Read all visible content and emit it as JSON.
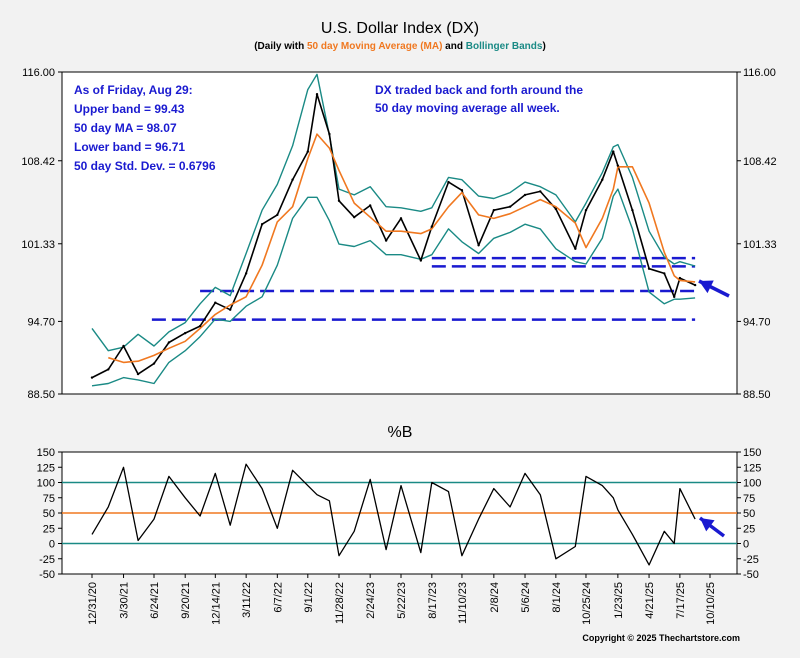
{
  "colors": {
    "price": "#000000",
    "ma": "#f07820",
    "bands": "#1a8a85",
    "annotation": "#1a1ad0",
    "support_lines": "#1a1ad0",
    "background": "#f2f2f2",
    "pane": "#ffffff"
  },
  "chart_data": [
    {
      "type": "line",
      "title": "U.S. Dollar Index (DX)",
      "subtitle": {
        "prefix": "(Daily with ",
        "ma": "50 day Moving Average (MA)",
        "mid": " and ",
        "bands": "Bollinger Bands",
        "suffix": ")"
      },
      "ylim": [
        88.5,
        116.0
      ],
      "y_ticks": [
        "116.00",
        "108.42",
        "101.33",
        "94.70",
        "88.50"
      ],
      "y_tick_values": [
        116.0,
        108.42,
        101.33,
        94.7,
        88.5
      ],
      "x_ticks": [
        "12/31/20",
        "3/30/21",
        "6/24/21",
        "9/20/21",
        "12/14/21",
        "3/11/22",
        "6/7/22",
        "9/1/22",
        "11/28/22",
        "2/24/23",
        "5/22/23",
        "8/17/23",
        "11/10/23",
        "2/8/24",
        "5/6/24",
        "8/1/24",
        "10/25/24",
        "1/23/25",
        "4/21/25",
        "7/17/25",
        "10/10/25"
      ],
      "series": [
        {
          "role": "price",
          "x": [
            "12/31/20",
            "2/15/21",
            "3/30/21",
            "5/10/21",
            "6/24/21",
            "8/5/21",
            "9/20/21",
            "11/1/21",
            "12/14/21",
            "1/25/22",
            "3/11/22",
            "4/25/22",
            "6/7/22",
            "7/20/22",
            "9/1/22",
            "9/27/22",
            "11/1/22",
            "11/28/22",
            "1/10/23",
            "2/24/23",
            "4/10/23",
            "5/22/23",
            "7/17/23",
            "8/17/23",
            "10/3/23",
            "11/10/23",
            "12/27/23",
            "2/8/24",
            "3/25/24",
            "5/6/24",
            "6/18/24",
            "8/1/24",
            "9/25/24",
            "10/25/24",
            "12/10/24",
            "1/10/25",
            "1/23/25",
            "3/5/25",
            "4/21/25",
            "6/3/25",
            "7/1/25",
            "7/17/25",
            "8/29/25"
          ],
          "values": [
            89.9,
            90.6,
            92.6,
            90.2,
            91.1,
            92.9,
            93.7,
            94.3,
            96.3,
            95.7,
            98.8,
            103.0,
            103.8,
            106.8,
            109.2,
            114.1,
            110.7,
            105.0,
            103.6,
            104.6,
            101.6,
            103.5,
            99.9,
            102.8,
            106.6,
            105.9,
            101.2,
            104.2,
            104.5,
            105.5,
            105.8,
            104.3,
            100.9,
            104.2,
            106.8,
            109.2,
            108.0,
            104.2,
            99.2,
            98.8,
            96.8,
            98.4,
            97.8
          ]
        },
        {
          "role": "ma",
          "x": [
            "2/15/21",
            "3/30/21",
            "5/10/21",
            "6/24/21",
            "8/5/21",
            "9/20/21",
            "11/1/21",
            "12/14/21",
            "1/25/22",
            "3/11/22",
            "4/25/22",
            "6/7/22",
            "7/20/22",
            "9/1/22",
            "9/27/22",
            "11/1/22",
            "11/28/22",
            "1/10/23",
            "2/24/23",
            "4/10/23",
            "5/22/23",
            "7/17/23",
            "8/17/23",
            "10/3/23",
            "11/10/23",
            "12/27/23",
            "2/8/24",
            "3/25/24",
            "5/6/24",
            "6/18/24",
            "8/1/24",
            "9/25/24",
            "10/25/24",
            "12/10/24",
            "1/10/25",
            "1/23/25",
            "3/5/25",
            "4/21/25",
            "6/3/25",
            "7/1/25",
            "7/17/25",
            "8/29/25"
          ],
          "values": [
            91.6,
            91.2,
            91.3,
            91.8,
            92.4,
            93.0,
            94.1,
            95.3,
            96.1,
            96.8,
            99.5,
            103.2,
            104.5,
            108.6,
            110.7,
            109.5,
            107.6,
            104.8,
            103.6,
            102.4,
            102.4,
            102.2,
            102.6,
            104.5,
            105.7,
            103.8,
            103.5,
            103.9,
            104.5,
            105.1,
            104.5,
            103.1,
            101.0,
            103.5,
            106.0,
            107.9,
            107.9,
            104.8,
            100.6,
            98.6,
            98.2,
            98.07
          ]
        },
        {
          "role": "upper_band",
          "x": [
            "12/31/20",
            "2/15/21",
            "3/30/21",
            "5/10/21",
            "6/24/21",
            "8/5/21",
            "9/20/21",
            "11/1/21",
            "12/14/21",
            "1/25/22",
            "3/11/22",
            "4/25/22",
            "6/7/22",
            "7/20/22",
            "9/1/22",
            "9/27/22",
            "11/1/22",
            "11/28/22",
            "1/10/23",
            "2/24/23",
            "4/10/23",
            "5/22/23",
            "7/17/23",
            "8/17/23",
            "10/3/23",
            "11/10/23",
            "12/27/23",
            "2/8/24",
            "3/25/24",
            "5/6/24",
            "6/18/24",
            "8/1/24",
            "9/25/24",
            "10/25/24",
            "12/10/24",
            "1/10/25",
            "1/23/25",
            "3/5/25",
            "4/21/25",
            "6/3/25",
            "7/1/25",
            "7/17/25",
            "8/29/25"
          ],
          "values": [
            94.1,
            92.2,
            92.5,
            93.6,
            92.6,
            93.8,
            94.6,
            96.2,
            97.6,
            96.9,
            100.5,
            104.2,
            106.4,
            109.7,
            114.5,
            115.8,
            110.6,
            106.0,
            105.5,
            106.2,
            104.5,
            104.4,
            104.1,
            104.4,
            107.0,
            106.8,
            105.4,
            105.2,
            105.7,
            106.6,
            106.2,
            105.5,
            103.2,
            104.8,
            107.4,
            109.6,
            109.8,
            107.0,
            102.4,
            100.2,
            99.6,
            99.8,
            99.43
          ]
        },
        {
          "role": "lower_band",
          "x": [
            "12/31/20",
            "2/15/21",
            "3/30/21",
            "5/10/21",
            "6/24/21",
            "8/5/21",
            "9/20/21",
            "11/1/21",
            "12/14/21",
            "1/25/22",
            "3/11/22",
            "4/25/22",
            "6/7/22",
            "7/20/22",
            "9/1/22",
            "9/27/22",
            "11/1/22",
            "11/28/22",
            "1/10/23",
            "2/24/23",
            "4/10/23",
            "5/22/23",
            "7/17/23",
            "8/17/23",
            "10/3/23",
            "11/10/23",
            "12/27/23",
            "2/8/24",
            "3/25/24",
            "5/6/24",
            "6/18/24",
            "8/1/24",
            "9/25/24",
            "10/25/24",
            "12/10/24",
            "1/10/25",
            "1/23/25",
            "3/5/25",
            "4/21/25",
            "6/3/25",
            "7/1/25",
            "7/17/25",
            "8/29/25"
          ],
          "values": [
            89.2,
            89.4,
            89.9,
            89.7,
            89.4,
            91.2,
            92.2,
            93.4,
            94.9,
            94.7,
            96.0,
            96.8,
            99.5,
            103.5,
            105.3,
            105.3,
            103.3,
            101.3,
            101.1,
            101.6,
            100.4,
            100.4,
            100.0,
            100.4,
            102.6,
            101.5,
            100.5,
            101.8,
            102.3,
            103.0,
            102.6,
            100.9,
            99.8,
            99.6,
            101.8,
            105.4,
            106.0,
            102.6,
            97.2,
            96.2,
            96.6,
            96.6,
            96.71
          ]
        }
      ],
      "support_lines": [
        {
          "from": "6/18/21",
          "to": "8/29/25",
          "value": 94.85
        },
        {
          "from": "11/1/21",
          "to": "8/29/25",
          "value": 97.3
        },
        {
          "from": "8/17/23",
          "to": "8/29/25",
          "value": 99.4
        },
        {
          "from": "8/17/23",
          "to": "8/29/25",
          "value": 100.1
        }
      ],
      "annotations": {
        "stats": [
          "As of Friday, Aug 29:",
          "Upper band = 99.43",
          "50 day MA = 98.07",
          "Lower band = 96.71",
          "50 day Std. Dev. = 0.6796"
        ],
        "comment": [
          "DX traded back and forth around the",
          "50 day moving average all week."
        ]
      }
    },
    {
      "type": "line",
      "title": "%B",
      "ylim": [
        -50,
        150
      ],
      "y_ticks": [
        "150",
        "125",
        "100",
        "75",
        "50",
        "25",
        "0",
        "-25",
        "-50"
      ],
      "y_tick_values": [
        150,
        125,
        100,
        75,
        50,
        25,
        0,
        -25,
        -50
      ],
      "reference_lines": [
        {
          "value": 100,
          "role": "upper"
        },
        {
          "value": 50,
          "role": "mid"
        },
        {
          "value": 0,
          "role": "lower"
        }
      ],
      "series": [
        {
          "role": "percent_b",
          "x": [
            "12/31/20",
            "2/15/21",
            "3/30/21",
            "5/10/21",
            "6/24/21",
            "8/5/21",
            "9/20/21",
            "11/1/21",
            "12/14/21",
            "1/25/22",
            "3/11/22",
            "4/25/22",
            "6/7/22",
            "7/20/22",
            "9/1/22",
            "9/27/22",
            "11/1/22",
            "11/28/22",
            "1/10/23",
            "2/24/23",
            "4/10/23",
            "5/22/23",
            "7/17/23",
            "8/17/23",
            "10/3/23",
            "11/10/23",
            "12/27/23",
            "2/8/24",
            "3/25/24",
            "5/6/24",
            "6/18/24",
            "8/1/24",
            "9/25/24",
            "10/25/24",
            "12/10/24",
            "1/10/25",
            "1/23/25",
            "3/5/25",
            "4/21/25",
            "6/3/25",
            "7/1/25",
            "7/17/25",
            "8/29/25"
          ],
          "values": [
            15,
            60,
            125,
            5,
            40,
            110,
            75,
            45,
            115,
            30,
            130,
            90,
            25,
            120,
            95,
            80,
            70,
            -20,
            20,
            105,
            -10,
            95,
            -15,
            100,
            85,
            -20,
            40,
            90,
            60,
            115,
            80,
            -25,
            -5,
            110,
            95,
            75,
            55,
            15,
            -35,
            20,
            0,
            90,
            40
          ]
        }
      ]
    }
  ],
  "copyright": "Copyright © 2025 Thechartstore.com"
}
